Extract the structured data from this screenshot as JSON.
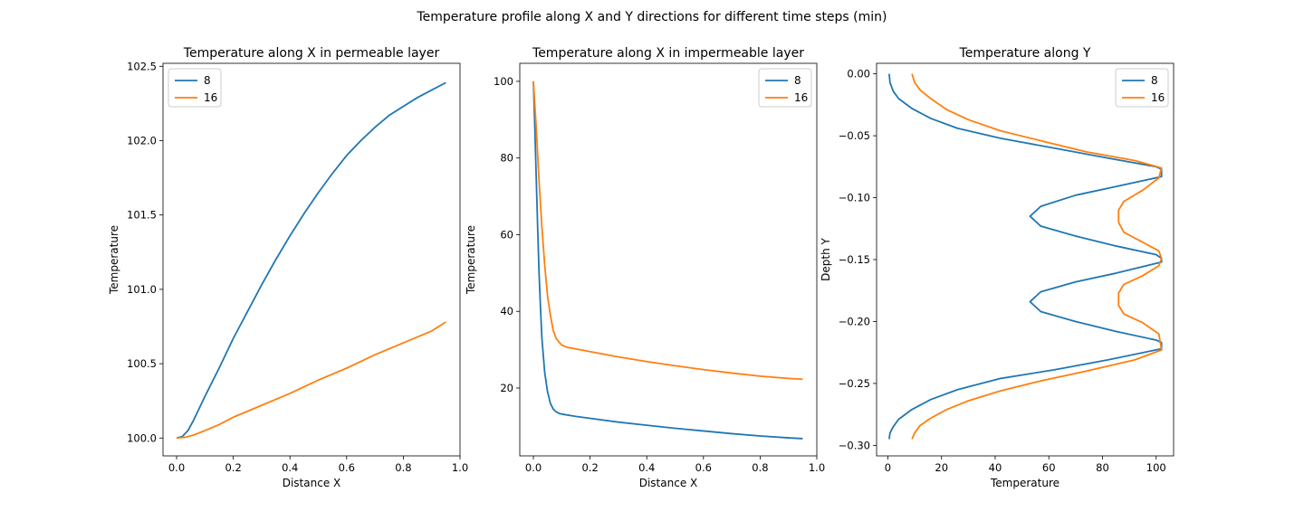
{
  "figure": {
    "suptitle": "Temperature profile along X and Y directions for different time steps (min)"
  },
  "colors": {
    "series_8": "#1f77b4",
    "series_16": "#ff7f0e"
  },
  "chart_data": [
    {
      "type": "line",
      "title": "Temperature along X in permeable layer",
      "xlabel": "Distance X",
      "ylabel": "Temperature",
      "xlim": [
        -0.048,
        1.0
      ],
      "ylim": [
        99.88,
        102.52
      ],
      "xticks": [
        0.0,
        0.2,
        0.4,
        0.6,
        0.8,
        1.0
      ],
      "xtick_labels": [
        "0.0",
        "0.2",
        "0.4",
        "0.6",
        "0.8",
        "1.0"
      ],
      "yticks": [
        100.0,
        100.5,
        101.0,
        101.5,
        102.0,
        102.5
      ],
      "ytick_labels": [
        "100.0",
        "100.5",
        "101.0",
        "101.5",
        "102.0",
        "102.5"
      ],
      "legend": "upper left",
      "series": [
        {
          "name": "8",
          "x": [
            0.0,
            0.02,
            0.04,
            0.06,
            0.08,
            0.1,
            0.15,
            0.2,
            0.25,
            0.3,
            0.35,
            0.4,
            0.45,
            0.5,
            0.55,
            0.6,
            0.65,
            0.7,
            0.75,
            0.8,
            0.85,
            0.9,
            0.95
          ],
          "y": [
            100.0,
            100.01,
            100.05,
            100.12,
            100.2,
            100.28,
            100.47,
            100.67,
            100.85,
            101.03,
            101.2,
            101.36,
            101.51,
            101.65,
            101.78,
            101.9,
            102.0,
            102.09,
            102.17,
            102.23,
            102.29,
            102.34,
            102.39
          ]
        },
        {
          "name": "16",
          "x": [
            0.0,
            0.03,
            0.06,
            0.1,
            0.15,
            0.2,
            0.3,
            0.4,
            0.5,
            0.6,
            0.7,
            0.8,
            0.9,
            0.95
          ],
          "y": [
            100.0,
            100.005,
            100.02,
            100.05,
            100.09,
            100.14,
            100.22,
            100.3,
            100.39,
            100.47,
            100.56,
            100.64,
            100.72,
            100.78
          ]
        }
      ]
    },
    {
      "type": "line",
      "title": "Temperature along X in impermeable layer",
      "xlabel": "Distance X",
      "ylabel": "Temperature",
      "xlim": [
        -0.048,
        1.0
      ],
      "ylim": [
        2.3,
        104.7
      ],
      "xticks": [
        0.0,
        0.2,
        0.4,
        0.6,
        0.8,
        1.0
      ],
      "xtick_labels": [
        "0.0",
        "0.2",
        "0.4",
        "0.6",
        "0.8",
        "1.0"
      ],
      "yticks": [
        20,
        40,
        60,
        80,
        100
      ],
      "ytick_labels": [
        "20",
        "40",
        "60",
        "80",
        "100"
      ],
      "legend": "upper right",
      "series": [
        {
          "name": "8",
          "x": [
            0.0,
            0.005,
            0.01,
            0.015,
            0.02,
            0.025,
            0.03,
            0.04,
            0.05,
            0.06,
            0.07,
            0.08,
            0.09,
            0.1,
            0.15,
            0.2,
            0.3,
            0.4,
            0.5,
            0.6,
            0.7,
            0.8,
            0.9,
            0.95
          ],
          "y": [
            100,
            88,
            75,
            62,
            50,
            41,
            33,
            24,
            19,
            16,
            14.5,
            13.8,
            13.4,
            13.2,
            12.6,
            12.1,
            11.1,
            10.3,
            9.5,
            8.8,
            8.1,
            7.5,
            7.0,
            6.8
          ]
        },
        {
          "name": "16",
          "x": [
            0.0,
            0.01,
            0.02,
            0.03,
            0.04,
            0.05,
            0.06,
            0.07,
            0.08,
            0.09,
            0.1,
            0.12,
            0.15,
            0.2,
            0.3,
            0.4,
            0.5,
            0.6,
            0.7,
            0.8,
            0.9,
            0.95
          ],
          "y": [
            100,
            88,
            74,
            62,
            52,
            44,
            39,
            35,
            33,
            32,
            31.2,
            30.6,
            30.2,
            29.5,
            28.1,
            26.9,
            25.8,
            24.8,
            23.9,
            23.1,
            22.5,
            22.3
          ]
        }
      ]
    },
    {
      "type": "line",
      "title": "Temperature along Y",
      "xlabel": "Temperature",
      "ylabel": "Depth Y",
      "xlim": [
        -4.2,
        106.5
      ],
      "ylim": [
        -0.3085,
        0.0085
      ],
      "xticks": [
        0,
        20,
        40,
        60,
        80,
        100
      ],
      "xtick_labels": [
        "0",
        "20",
        "40",
        "60",
        "80",
        "100"
      ],
      "yticks": [
        0.0,
        -0.05,
        -0.1,
        -0.15,
        -0.2,
        -0.25,
        -0.3
      ],
      "ytick_labels": [
        "0.00",
        "−0.05",
        "−0.10",
        "−0.15",
        "−0.20",
        "−0.25",
        "−0.30"
      ],
      "legend": "upper right",
      "series": [
        {
          "name": "8",
          "x": [
            0.5,
            0.8,
            2,
            4,
            9,
            16,
            26,
            42,
            62,
            82,
            100,
            102,
            102,
            85,
            70,
            57,
            53,
            57,
            70,
            85,
            100,
            102,
            102,
            100,
            85,
            70,
            57,
            53,
            57,
            70,
            85,
            100,
            102,
            102,
            82,
            62,
            42,
            26,
            16,
            9,
            4,
            2,
            0.8,
            0.5
          ],
          "y": [
            0.0,
            -0.007,
            -0.014,
            -0.02,
            -0.028,
            -0.036,
            -0.044,
            -0.052,
            -0.06,
            -0.068,
            -0.075,
            -0.077,
            -0.083,
            -0.091,
            -0.098,
            -0.107,
            -0.115,
            -0.123,
            -0.131,
            -0.139,
            -0.146,
            -0.149,
            -0.152,
            -0.153,
            -0.161,
            -0.168,
            -0.176,
            -0.184,
            -0.192,
            -0.2,
            -0.208,
            -0.215,
            -0.217,
            -0.222,
            -0.231,
            -0.239,
            -0.246,
            -0.255,
            -0.263,
            -0.271,
            -0.279,
            -0.285,
            -0.29,
            -0.295
          ]
        },
        {
          "name": "16",
          "x": [
            9,
            10,
            12,
            16,
            22,
            30,
            42,
            57,
            74,
            92,
            102,
            101,
            95,
            88,
            86,
            86,
            88,
            95,
            101,
            102,
            101,
            95,
            88,
            86,
            86,
            88,
            95,
            101,
            102,
            92,
            74,
            57,
            42,
            30,
            22,
            16,
            12,
            10,
            9
          ],
          "y": [
            0.0,
            -0.007,
            -0.013,
            -0.02,
            -0.029,
            -0.037,
            -0.046,
            -0.054,
            -0.063,
            -0.07,
            -0.076,
            -0.084,
            -0.094,
            -0.103,
            -0.11,
            -0.12,
            -0.128,
            -0.136,
            -0.143,
            -0.149,
            -0.155,
            -0.163,
            -0.17,
            -0.177,
            -0.187,
            -0.194,
            -0.201,
            -0.21,
            -0.223,
            -0.231,
            -0.24,
            -0.248,
            -0.256,
            -0.264,
            -0.271,
            -0.278,
            -0.284,
            -0.29,
            -0.295
          ]
        }
      ]
    }
  ]
}
